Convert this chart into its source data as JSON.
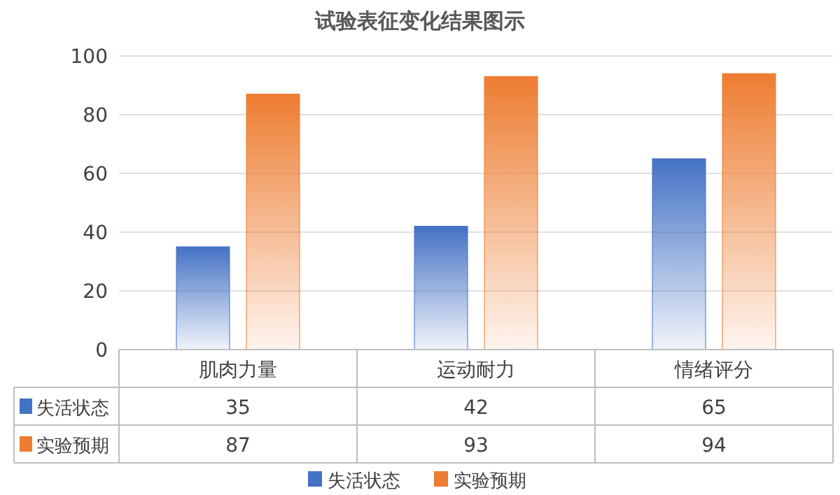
{
  "chart_data": {
    "type": "bar",
    "title": "试验表征变化结果图示",
    "categories": [
      "肌肉力量",
      "运动耐力",
      "情绪评分"
    ],
    "series": [
      {
        "name": "失活状态",
        "color": "#4472c4",
        "values": [
          35,
          42,
          65
        ]
      },
      {
        "name": "实验预期",
        "color": "#ed7d31",
        "values": [
          87,
          93,
          94
        ]
      }
    ],
    "ylim": [
      0,
      100
    ],
    "yticks": [
      0,
      20,
      40,
      60,
      80,
      100
    ],
    "grid": "y",
    "legend": "bottom",
    "data_labels": true
  }
}
